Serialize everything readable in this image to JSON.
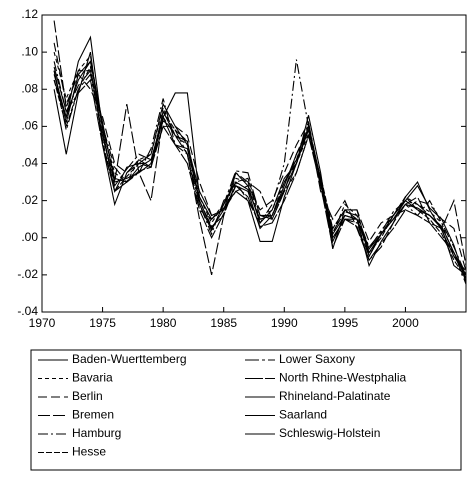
{
  "chart_data": {
    "type": "line",
    "x": [
      1971,
      1972,
      1973,
      1974,
      1975,
      1976,
      1977,
      1978,
      1979,
      1980,
      1981,
      1982,
      1983,
      1984,
      1985,
      1986,
      1987,
      1988,
      1989,
      1990,
      1991,
      1992,
      1993,
      1994,
      1995,
      1996,
      1997,
      1998,
      1999,
      2000,
      2001,
      2002,
      2003,
      2004,
      2005
    ],
    "xlim": [
      1970,
      2005
    ],
    "xticks": [
      1970,
      1975,
      1980,
      1985,
      1990,
      1995,
      2000
    ],
    "ylim": [
      -0.04,
      0.12
    ],
    "yticks": [
      {
        "value": -0.04,
        "label": "-.04"
      },
      {
        "value": -0.02,
        "label": "-.02"
      },
      {
        "value": 0,
        "label": ".00"
      },
      {
        "value": 0.02,
        "label": ".02"
      },
      {
        "value": 0.04,
        "label": ".04"
      },
      {
        "value": 0.06,
        "label": ".06"
      },
      {
        "value": 0.08,
        "label": ".08"
      },
      {
        "value": 0.1,
        "label": ".10"
      },
      {
        "value": 0.12,
        "label": ".12"
      }
    ],
    "series": [
      {
        "name": "Baden-Wuerttemberg",
        "color": "#000000",
        "dash": "none",
        "values": [
          0.088,
          0.065,
          0.085,
          0.095,
          0.06,
          0.032,
          0.03,
          0.038,
          0.042,
          0.065,
          0.05,
          0.048,
          0.02,
          0.005,
          0.015,
          0.028,
          0.025,
          0.005,
          0.012,
          0.028,
          0.045,
          0.058,
          0.03,
          -0.002,
          0.012,
          0.01,
          -0.008,
          0.002,
          0.01,
          0.02,
          0.015,
          0.012,
          0.005,
          -0.015,
          -0.02
        ]
      },
      {
        "name": "Bavaria",
        "color": "#000000",
        "dash": "4,3",
        "values": [
          0.1,
          0.075,
          0.09,
          0.098,
          0.058,
          0.035,
          0.03,
          0.042,
          0.045,
          0.07,
          0.055,
          0.05,
          0.022,
          0.008,
          0.018,
          0.032,
          0.03,
          0.01,
          0.015,
          0.03,
          0.04,
          0.056,
          0.032,
          0.002,
          0.018,
          0.012,
          -0.006,
          0.004,
          0.012,
          0.022,
          0.018,
          0.014,
          0.008,
          -0.01,
          -0.018
        ]
      },
      {
        "name": "Berlin",
        "color": "#000000",
        "dash": "9,4",
        "values": [
          0.105,
          0.072,
          0.088,
          0.08,
          0.065,
          0.04,
          0.035,
          0.04,
          0.04,
          0.06,
          0.06,
          0.055,
          0.03,
          0.012,
          0.015,
          0.025,
          0.028,
          0.015,
          0.02,
          0.035,
          0.05,
          0.062,
          0.028,
          0.005,
          0.015,
          0.015,
          -0.002,
          0.008,
          0.012,
          0.015,
          0.02,
          0.018,
          0.01,
          0.005,
          -0.018
        ]
      },
      {
        "name": "Bremen",
        "color": "#000000",
        "dash": "12,3",
        "values": [
          0.117,
          0.07,
          0.09,
          0.09,
          0.055,
          0.03,
          0.072,
          0.035,
          0.02,
          0.065,
          0.055,
          0.045,
          0.01,
          -0.02,
          0.012,
          0.035,
          0.03,
          0.025,
          0.01,
          0.025,
          0.045,
          0.06,
          0.025,
          0.01,
          0.02,
          0.005,
          -0.012,
          -0.005,
          0.008,
          0.018,
          0.022,
          0.008,
          0.005,
          0.02,
          -0.015
        ]
      },
      {
        "name": "Hamburg",
        "color": "#000000",
        "dash": "10,3,2,3",
        "values": [
          0.095,
          0.068,
          0.082,
          0.09,
          0.06,
          0.038,
          0.03,
          0.035,
          0.048,
          0.075,
          0.05,
          0.045,
          0.018,
          0.002,
          0.02,
          0.03,
          0.02,
          0.008,
          0.018,
          0.04,
          0.096,
          0.06,
          0.03,
          0,
          0.01,
          0.008,
          -0.01,
          0.002,
          0.01,
          0.018,
          0.012,
          0.02,
          0.008,
          -0.005,
          -0.02
        ]
      },
      {
        "name": "Hesse",
        "color": "#000000",
        "dash": "6,2",
        "values": [
          0.085,
          0.06,
          0.08,
          0.092,
          0.052,
          0.025,
          0.033,
          0.04,
          0.038,
          0.068,
          0.058,
          0.052,
          0.02,
          0.006,
          0.012,
          0.03,
          0.032,
          0.012,
          0.01,
          0.025,
          0.035,
          0.055,
          0.033,
          0.005,
          0.015,
          0.01,
          -0.008,
          0,
          0.012,
          0.022,
          0.015,
          0.01,
          0.002,
          -0.012,
          -0.022
        ]
      },
      {
        "name": "Lower Saxony",
        "color": "#000000",
        "dash": "14,3,3,3",
        "values": [
          0.09,
          0.058,
          0.08,
          0.088,
          0.055,
          0.028,
          0.037,
          0.045,
          0.042,
          0.063,
          0.058,
          0.045,
          0.015,
          0.01,
          0.018,
          0.036,
          0.035,
          0.012,
          0.012,
          0.03,
          0.042,
          0.062,
          0.03,
          0.003,
          0.014,
          0.012,
          -0.005,
          0.003,
          0.014,
          0.02,
          0.018,
          0.012,
          0.006,
          -0.008,
          -0.025
        ]
      },
      {
        "name": "North Rhine-Westphalia",
        "color": "#000000",
        "dash": "18,2",
        "values": [
          0.092,
          0.068,
          0.078,
          0.085,
          0.05,
          0.025,
          0.03,
          0.036,
          0.038,
          0.06,
          0.05,
          0.04,
          0.015,
          0,
          0.013,
          0.028,
          0.022,
          0.006,
          0.008,
          0.02,
          0.035,
          0.055,
          0.028,
          -0.005,
          0.01,
          0.006,
          -0.012,
          -0.003,
          0.005,
          0.015,
          0.012,
          0.008,
          0,
          -0.008,
          -0.022
        ]
      },
      {
        "name": "Rhineland-Palatinate",
        "color": "#000000",
        "dash": "none",
        "values": [
          0.08,
          0.045,
          0.078,
          0.1,
          0.05,
          0.018,
          0.035,
          0.042,
          0.038,
          0.065,
          0.078,
          0.078,
          0.022,
          0.01,
          0.016,
          0.025,
          0.02,
          -0.002,
          -0.002,
          0.022,
          0.04,
          0.058,
          0.03,
          0,
          0.01,
          0.01,
          -0.015,
          -0.002,
          0.008,
          0.022,
          0.03,
          0.015,
          0.004,
          -0.01,
          -0.02
        ]
      },
      {
        "name": "Saarland",
        "color": "#000000",
        "dash": "none",
        "values": [
          0.085,
          0.065,
          0.095,
          0.108,
          0.058,
          0.025,
          0.038,
          0.04,
          0.045,
          0.072,
          0.06,
          0.05,
          0.025,
          0.012,
          0.015,
          0.035,
          0.028,
          0.008,
          0.015,
          0.032,
          0.04,
          0.066,
          0.035,
          -0.006,
          0.015,
          0.015,
          -0.01,
          0.002,
          0.012,
          0.02,
          0.028,
          0.016,
          0.01,
          -0.004,
          -0.024
        ]
      },
      {
        "name": "Schleswig-Holstein",
        "color": "#000000",
        "dash": "none",
        "values": [
          0.09,
          0.062,
          0.088,
          0.095,
          0.062,
          0.03,
          0.032,
          0.035,
          0.04,
          0.068,
          0.055,
          0.052,
          0.018,
          0.004,
          0.018,
          0.03,
          0.026,
          0.01,
          0.012,
          0.026,
          0.04,
          0.06,
          0.032,
          0.002,
          0.012,
          0.01,
          -0.006,
          0.002,
          0.01,
          0.018,
          0.016,
          0.012,
          0.006,
          -0.008,
          -0.02
        ]
      }
    ]
  }
}
